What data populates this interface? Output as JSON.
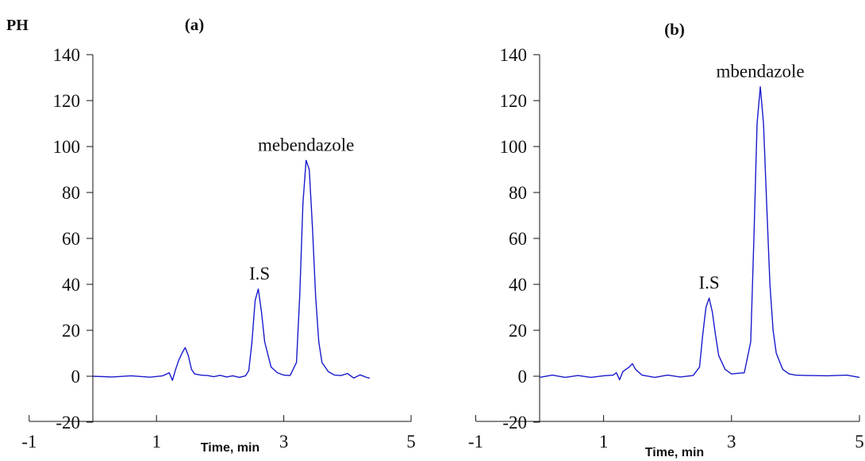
{
  "page": {
    "y_axis_label": "PH"
  },
  "chart_data": [
    {
      "type": "line",
      "panel_label": "(a)",
      "xlabel": "Time, min",
      "ylabel": "PH",
      "xlim": [
        -1,
        5
      ],
      "ylim": [
        -20,
        140
      ],
      "x_ticks": [
        "-1",
        "1",
        "3",
        "5"
      ],
      "y_ticks": [
        "-20",
        "0",
        "20",
        "40",
        "60",
        "80",
        "100",
        "120",
        "140"
      ],
      "line_color": "#1a1acc",
      "series": [
        {
          "x": [
            0.0,
            0.3,
            0.6,
            0.9,
            1.1,
            1.2,
            1.25,
            1.3,
            1.35,
            1.4,
            1.45,
            1.5,
            1.55,
            1.6,
            1.7,
            1.8,
            1.9,
            2.0,
            2.1,
            2.2,
            2.3,
            2.4,
            2.45,
            2.5,
            2.55,
            2.6,
            2.65,
            2.7,
            2.8,
            2.9,
            3.0,
            3.1,
            3.2,
            3.25,
            3.3,
            3.35,
            3.4,
            3.45,
            3.5,
            3.55,
            3.6,
            3.7,
            3.8,
            3.9,
            4.0,
            4.1,
            4.2,
            4.3,
            4.35
          ],
          "y": [
            0,
            -0.3,
            0.2,
            -0.4,
            0.2,
            1.5,
            -1.8,
            3,
            7,
            10,
            12.5,
            9,
            3,
            1,
            0.5,
            0.3,
            -0.2,
            0.4,
            -0.3,
            0.2,
            -0.5,
            0.2,
            2.5,
            15,
            33,
            38,
            28,
            15,
            4,
            1.5,
            0.5,
            0.3,
            6,
            35,
            75,
            94,
            90,
            65,
            35,
            15,
            6,
            2,
            0.5,
            0.3,
            1.2,
            -0.8,
            0.6,
            -0.5,
            -0.8
          ]
        }
      ],
      "annotations": [
        {
          "text": "I.S",
          "x": 2.62,
          "y": 38
        },
        {
          "text": "mebendazole",
          "x": 3.35,
          "y": 94
        }
      ]
    },
    {
      "type": "line",
      "panel_label": "(b)",
      "xlabel": "Time, min",
      "ylabel": "",
      "xlim": [
        -1,
        5
      ],
      "ylim": [
        -20,
        140
      ],
      "x_ticks": [
        "-1",
        "1",
        "3",
        "5"
      ],
      "y_ticks": [
        "-20",
        "0",
        "20",
        "40",
        "60",
        "80",
        "100",
        "120",
        "140"
      ],
      "line_color": "#1a1acc",
      "series": [
        {
          "x": [
            0.0,
            0.2,
            0.4,
            0.6,
            0.8,
            1.0,
            1.15,
            1.2,
            1.25,
            1.3,
            1.35,
            1.4,
            1.45,
            1.5,
            1.6,
            1.8,
            2.0,
            2.2,
            2.4,
            2.5,
            2.55,
            2.6,
            2.65,
            2.7,
            2.75,
            2.8,
            2.9,
            3.0,
            3.2,
            3.3,
            3.35,
            3.4,
            3.45,
            3.5,
            3.55,
            3.6,
            3.65,
            3.7,
            3.8,
            3.9,
            4.0,
            4.2,
            4.5,
            4.8,
            5.0
          ],
          "y": [
            -0.5,
            0.5,
            -0.5,
            0.3,
            -0.5,
            0.2,
            0.5,
            1.5,
            -1.5,
            2,
            3,
            4,
            5.5,
            3,
            0.5,
            -0.5,
            0.5,
            -0.3,
            0.3,
            4,
            18,
            30,
            34,
            28,
            18,
            9,
            3,
            1,
            1.5,
            15,
            60,
            110,
            126,
            110,
            75,
            40,
            20,
            10,
            3,
            1,
            0.5,
            0.3,
            0.2,
            0.5,
            -0.5
          ]
        }
      ],
      "annotations": [
        {
          "text": "I.S",
          "x": 2.65,
          "y": 34
        },
        {
          "text": "mbendazole",
          "x": 3.45,
          "y": 126
        }
      ]
    }
  ]
}
